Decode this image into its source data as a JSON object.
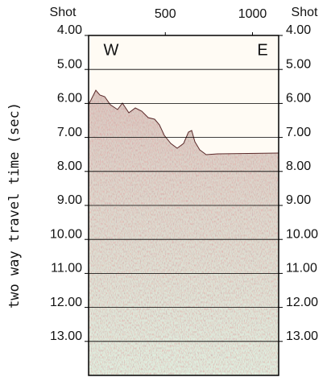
{
  "chart_data": {
    "type": "seismic",
    "y_label": "two way travel time (sec)",
    "x_label": "Shot",
    "annotations": [
      "W",
      "E"
    ],
    "xlim": [
      60,
      1150
    ],
    "xticks": [
      500,
      1000
    ],
    "ylim": [
      4,
      14
    ],
    "yticks": [
      {
        "value": 4,
        "label": "4.00"
      },
      {
        "value": 5,
        "label": "5.00"
      },
      {
        "value": 6,
        "label": "6.00"
      },
      {
        "value": 7,
        "label": "7.00"
      },
      {
        "value": 8,
        "label": "8.00"
      },
      {
        "value": 9,
        "label": "9.00"
      },
      {
        "value": 10,
        "label": "10.00"
      },
      {
        "value": 11,
        "label": "11.00"
      },
      {
        "value": 12,
        "label": "12.00"
      },
      {
        "value": 13,
        "label": "13.00"
      }
    ],
    "grid": true
  }
}
